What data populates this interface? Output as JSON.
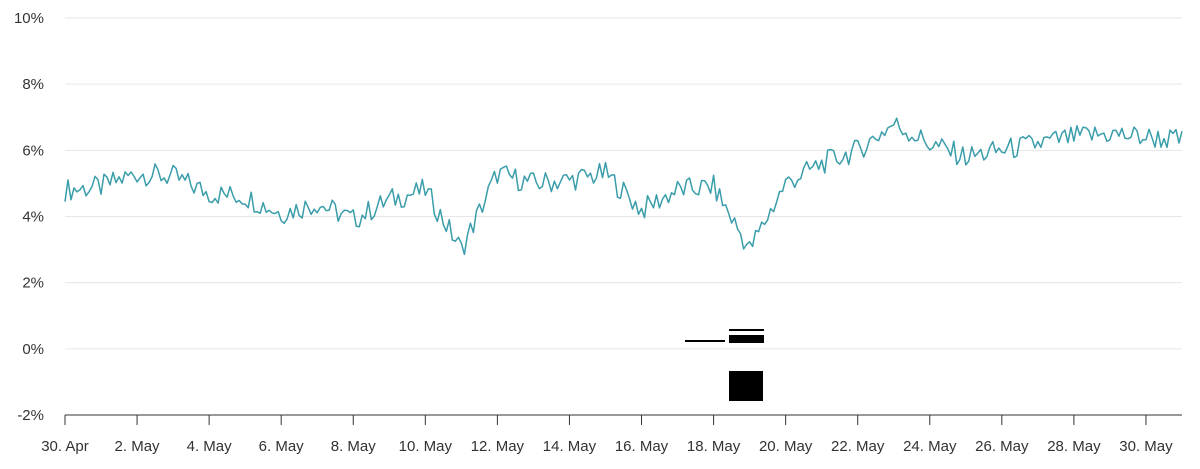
{
  "chart_data": {
    "type": "line",
    "title": "",
    "xlabel": "",
    "ylabel": "",
    "ylim": [
      -2,
      10
    ],
    "y_ticks": [
      -2,
      0,
      2,
      4,
      6,
      8,
      10
    ],
    "y_tick_labels": [
      "-2%",
      "0%",
      "2%",
      "4%",
      "6%",
      "8%",
      "10%"
    ],
    "x_range_days": [
      "30. Apr",
      "31. May"
    ],
    "x_tick_labels": [
      "30. Apr",
      "2. May",
      "4. May",
      "6. May",
      "8. May",
      "10. May",
      "12. May",
      "14. May",
      "16. May",
      "18. May",
      "20. May",
      "22. May",
      "24. May",
      "26. May",
      "28. May",
      "30. May"
    ],
    "grid": true,
    "legend": "none",
    "colors": {
      "line": "#3a9daa",
      "grid": "#e6e6e6",
      "axis": "#333333"
    },
    "series": [
      {
        "x": [
          "30. Apr",
          "1. May",
          "2. May",
          "3. May",
          "4. May",
          "5. May",
          "6. May",
          "7. May",
          "8. May",
          "9. May",
          "10. May",
          "11. May",
          "12. May",
          "13. May",
          "14. May",
          "15. May",
          "16. May",
          "17. May",
          "18. May",
          "19. May",
          "20. May",
          "21. May",
          "22. May",
          "23. May",
          "24. May",
          "25. May",
          "26. May",
          "27. May",
          "28. May",
          "29. May",
          "30. May",
          "31. May"
        ],
        "values": [
          4.8,
          4.9,
          5.3,
          5.2,
          4.7,
          4.6,
          4.1,
          4.4,
          3.9,
          4.5,
          4.8,
          3.0,
          5.3,
          5.0,
          5.1,
          5.3,
          4.2,
          4.8,
          4.9,
          3.0,
          5.0,
          5.6,
          6.0,
          6.8,
          6.2,
          5.8,
          6.0,
          6.2,
          6.4,
          6.5,
          6.4,
          6.3
        ]
      }
    ]
  }
}
